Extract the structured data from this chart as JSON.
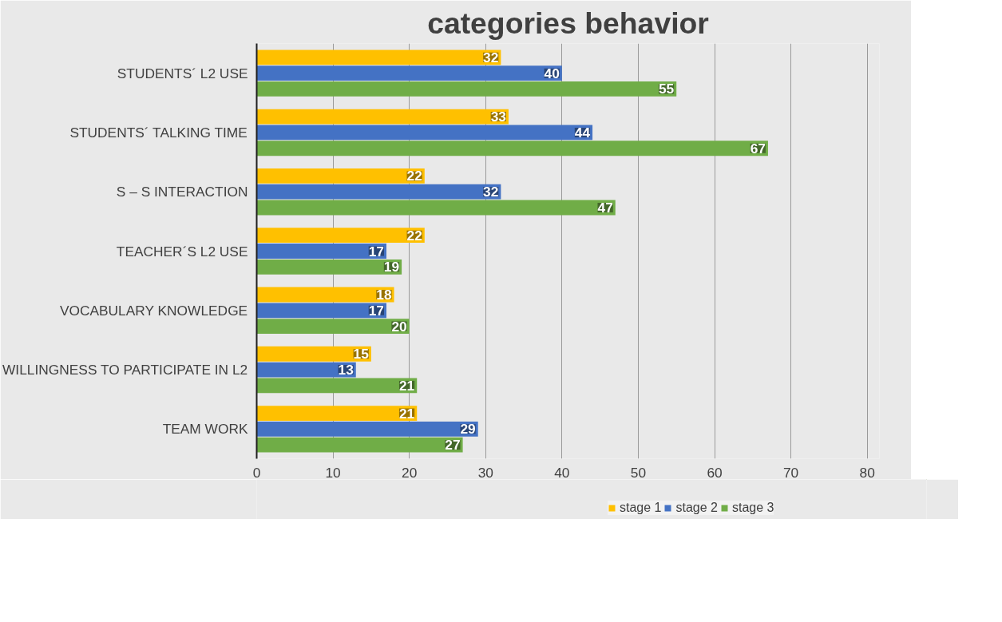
{
  "chart_data": {
    "type": "bar",
    "orientation": "horizontal",
    "title": "categories behavior",
    "categories": [
      "STUDENTS´ L2 USE",
      "STUDENTS´ TALKING TIME",
      "S – S INTERACTION",
      "TEACHER´S L2 USE",
      "VOCABULARY KNOWLEDGE",
      "WILLINGNESS TO PARTICIPATE IN L2",
      "TEAM WORK"
    ],
    "series": [
      {
        "name": "stage 1",
        "color": "#ffc000",
        "values": [
          32,
          33,
          22,
          22,
          18,
          15,
          21
        ]
      },
      {
        "name": "stage 2",
        "color": "#4472c4",
        "values": [
          40,
          44,
          32,
          17,
          17,
          13,
          29
        ]
      },
      {
        "name": "stage 3",
        "color": "#70ad47",
        "values": [
          55,
          67,
          47,
          19,
          20,
          21,
          27
        ]
      }
    ],
    "xlim": [
      0,
      80
    ],
    "xticks": [
      0,
      10,
      20,
      30,
      40,
      50,
      60,
      70,
      80
    ],
    "grid": "x",
    "legend": "bottom",
    "data_labels": true
  }
}
